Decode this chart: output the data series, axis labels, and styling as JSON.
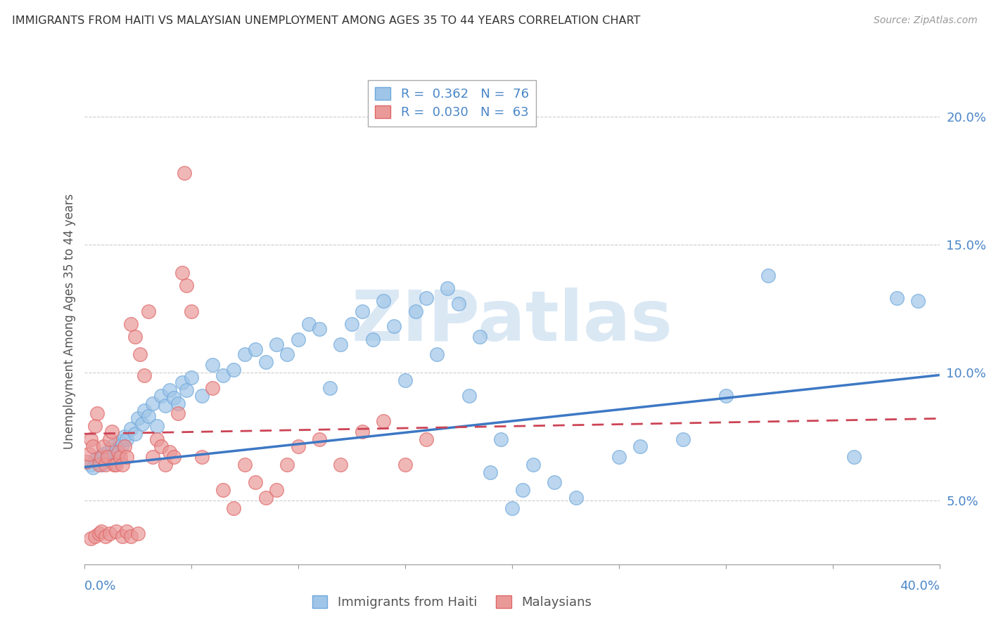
{
  "title": "IMMIGRANTS FROM HAITI VS MALAYSIAN UNEMPLOYMENT AMONG AGES 35 TO 44 YEARS CORRELATION CHART",
  "source": "Source: ZipAtlas.com",
  "ylabel": "Unemployment Among Ages 35 to 44 years",
  "legend_entry1": "R =  0.362   N =  76",
  "legend_entry2": "R =  0.030   N =  63",
  "legend_label1": "Immigrants from Haiti",
  "legend_label2": "Malaysians",
  "xmin": 0.0,
  "xmax": 0.4,
  "ymin": 0.025,
  "ymax": 0.215,
  "ytick_values": [
    0.05,
    0.1,
    0.15,
    0.2
  ],
  "ytick_labels": [
    "5.0%",
    "10.0%",
    "15.0%",
    "20.0%"
  ],
  "blue_color": "#9fc5e8",
  "pink_color": "#ea9999",
  "blue_edge_color": "#6fa8dc",
  "pink_edge_color": "#e06666",
  "blue_line_color": "#3d78c4",
  "pink_line_color": "#cc4455",
  "watermark_color": "#dae8f4",
  "blue_trend_x0": 0.0,
  "blue_trend_y0": 0.063,
  "blue_trend_x1": 0.4,
  "blue_trend_y1": 0.099,
  "pink_trend_x0": 0.0,
  "pink_trend_y0": 0.076,
  "pink_trend_x1": 0.4,
  "pink_trend_y1": 0.082,
  "blue_scatter": [
    [
      0.003,
      0.064
    ],
    [
      0.004,
      0.063
    ],
    [
      0.005,
      0.066
    ],
    [
      0.006,
      0.065
    ],
    [
      0.007,
      0.067
    ],
    [
      0.008,
      0.064
    ],
    [
      0.009,
      0.068
    ],
    [
      0.01,
      0.066
    ],
    [
      0.011,
      0.069
    ],
    [
      0.012,
      0.067
    ],
    [
      0.013,
      0.071
    ],
    [
      0.014,
      0.065
    ],
    [
      0.015,
      0.07
    ],
    [
      0.016,
      0.068
    ],
    [
      0.017,
      0.073
    ],
    [
      0.018,
      0.072
    ],
    [
      0.019,
      0.075
    ],
    [
      0.02,
      0.074
    ],
    [
      0.022,
      0.078
    ],
    [
      0.024,
      0.076
    ],
    [
      0.025,
      0.082
    ],
    [
      0.027,
      0.08
    ],
    [
      0.028,
      0.085
    ],
    [
      0.03,
      0.083
    ],
    [
      0.032,
      0.088
    ],
    [
      0.034,
      0.079
    ],
    [
      0.036,
      0.091
    ],
    [
      0.038,
      0.087
    ],
    [
      0.04,
      0.093
    ],
    [
      0.042,
      0.09
    ],
    [
      0.044,
      0.088
    ],
    [
      0.046,
      0.096
    ],
    [
      0.048,
      0.093
    ],
    [
      0.05,
      0.098
    ],
    [
      0.055,
      0.091
    ],
    [
      0.06,
      0.103
    ],
    [
      0.065,
      0.099
    ],
    [
      0.07,
      0.101
    ],
    [
      0.075,
      0.107
    ],
    [
      0.08,
      0.109
    ],
    [
      0.085,
      0.104
    ],
    [
      0.09,
      0.111
    ],
    [
      0.095,
      0.107
    ],
    [
      0.1,
      0.113
    ],
    [
      0.105,
      0.119
    ],
    [
      0.11,
      0.117
    ],
    [
      0.115,
      0.094
    ],
    [
      0.12,
      0.111
    ],
    [
      0.125,
      0.119
    ],
    [
      0.13,
      0.124
    ],
    [
      0.135,
      0.113
    ],
    [
      0.14,
      0.128
    ],
    [
      0.145,
      0.118
    ],
    [
      0.15,
      0.097
    ],
    [
      0.155,
      0.124
    ],
    [
      0.16,
      0.129
    ],
    [
      0.165,
      0.107
    ],
    [
      0.17,
      0.133
    ],
    [
      0.175,
      0.127
    ],
    [
      0.18,
      0.091
    ],
    [
      0.185,
      0.114
    ],
    [
      0.19,
      0.061
    ],
    [
      0.195,
      0.074
    ],
    [
      0.2,
      0.047
    ],
    [
      0.205,
      0.054
    ],
    [
      0.21,
      0.064
    ],
    [
      0.22,
      0.057
    ],
    [
      0.23,
      0.051
    ],
    [
      0.25,
      0.067
    ],
    [
      0.26,
      0.071
    ],
    [
      0.28,
      0.074
    ],
    [
      0.3,
      0.091
    ],
    [
      0.32,
      0.138
    ],
    [
      0.36,
      0.067
    ],
    [
      0.38,
      0.129
    ],
    [
      0.39,
      0.128
    ]
  ],
  "pink_scatter": [
    [
      0.001,
      0.065
    ],
    [
      0.002,
      0.068
    ],
    [
      0.003,
      0.074
    ],
    [
      0.004,
      0.071
    ],
    [
      0.005,
      0.079
    ],
    [
      0.006,
      0.084
    ],
    [
      0.007,
      0.064
    ],
    [
      0.008,
      0.067
    ],
    [
      0.009,
      0.071
    ],
    [
      0.01,
      0.064
    ],
    [
      0.011,
      0.067
    ],
    [
      0.012,
      0.074
    ],
    [
      0.013,
      0.077
    ],
    [
      0.014,
      0.064
    ],
    [
      0.015,
      0.064
    ],
    [
      0.016,
      0.069
    ],
    [
      0.017,
      0.067
    ],
    [
      0.018,
      0.064
    ],
    [
      0.019,
      0.071
    ],
    [
      0.02,
      0.067
    ],
    [
      0.022,
      0.119
    ],
    [
      0.024,
      0.114
    ],
    [
      0.026,
      0.107
    ],
    [
      0.028,
      0.099
    ],
    [
      0.03,
      0.124
    ],
    [
      0.032,
      0.067
    ],
    [
      0.034,
      0.074
    ],
    [
      0.036,
      0.071
    ],
    [
      0.038,
      0.064
    ],
    [
      0.04,
      0.069
    ],
    [
      0.042,
      0.067
    ],
    [
      0.044,
      0.084
    ],
    [
      0.046,
      0.139
    ],
    [
      0.047,
      0.178
    ],
    [
      0.048,
      0.134
    ],
    [
      0.05,
      0.124
    ],
    [
      0.055,
      0.067
    ],
    [
      0.06,
      0.094
    ],
    [
      0.065,
      0.054
    ],
    [
      0.07,
      0.047
    ],
    [
      0.075,
      0.064
    ],
    [
      0.08,
      0.057
    ],
    [
      0.085,
      0.051
    ],
    [
      0.09,
      0.054
    ],
    [
      0.095,
      0.064
    ],
    [
      0.1,
      0.071
    ],
    [
      0.11,
      0.074
    ],
    [
      0.12,
      0.064
    ],
    [
      0.13,
      0.077
    ],
    [
      0.14,
      0.081
    ],
    [
      0.15,
      0.064
    ],
    [
      0.16,
      0.074
    ],
    [
      0.003,
      0.035
    ],
    [
      0.005,
      0.036
    ],
    [
      0.007,
      0.037
    ],
    [
      0.008,
      0.038
    ],
    [
      0.01,
      0.036
    ],
    [
      0.012,
      0.037
    ],
    [
      0.015,
      0.038
    ],
    [
      0.018,
      0.036
    ],
    [
      0.02,
      0.038
    ],
    [
      0.022,
      0.036
    ],
    [
      0.025,
      0.037
    ]
  ]
}
